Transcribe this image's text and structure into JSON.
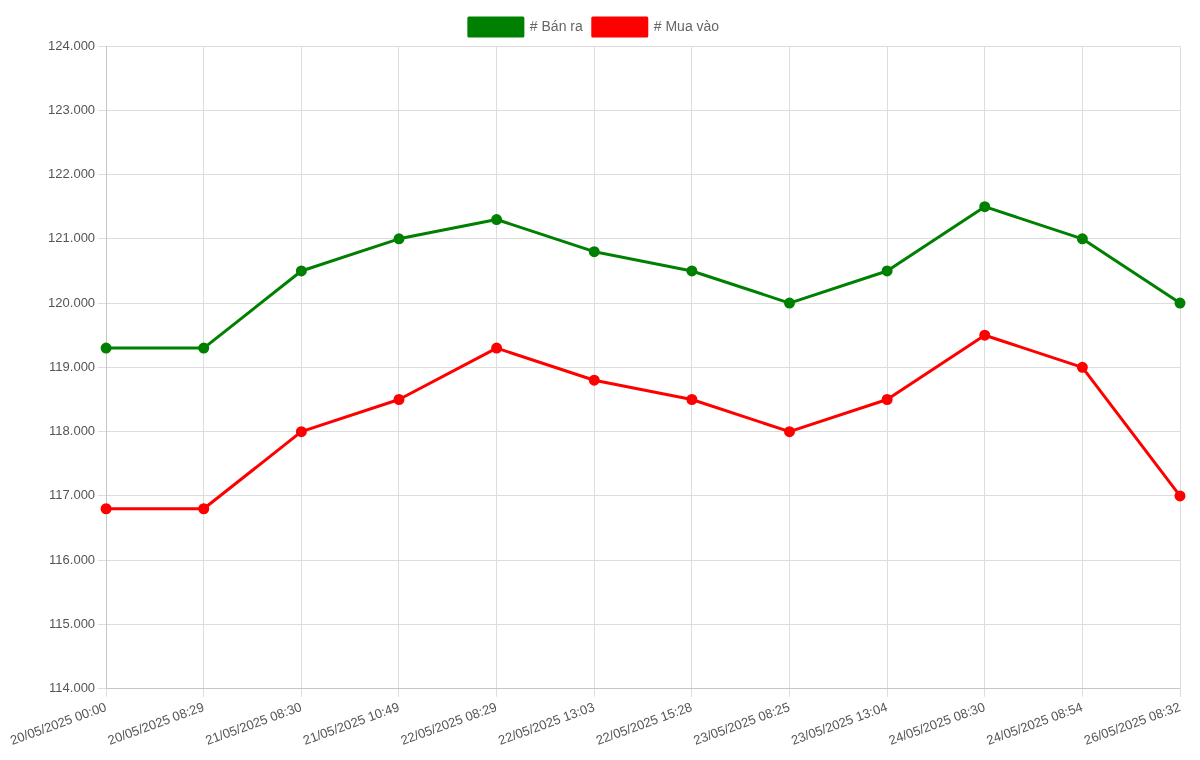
{
  "chart_data": {
    "type": "line",
    "categories": [
      "20/05/2025 00:00",
      "20/05/2025 08:29",
      "21/05/2025 08:30",
      "21/05/2025 10:49",
      "22/05/2025 08:29",
      "22/05/2025 13:03",
      "22/05/2025 15:28",
      "23/05/2025 08:25",
      "23/05/2025 13:04",
      "24/05/2025 08:30",
      "24/05/2025 08:54",
      "26/05/2025 08:32"
    ],
    "series": [
      {
        "name": "# Bán ra",
        "color": "#008000",
        "values": [
          119300,
          119300,
          120500,
          121000,
          121300,
          120800,
          120500,
          120000,
          120500,
          121500,
          121000,
          120000
        ]
      },
      {
        "name": "# Mua vào",
        "color": "#ff0000",
        "values": [
          116800,
          116800,
          118000,
          118500,
          119300,
          118800,
          118500,
          118000,
          118500,
          119500,
          119000,
          117000
        ]
      }
    ],
    "ylim": [
      114000,
      124000
    ],
    "yticks": [
      {
        "value": 114000,
        "label": "114.000"
      },
      {
        "value": 115000,
        "label": "115.000"
      },
      {
        "value": 116000,
        "label": "116.000"
      },
      {
        "value": 117000,
        "label": "117.000"
      },
      {
        "value": 118000,
        "label": "118.000"
      },
      {
        "value": 119000,
        "label": "119.000"
      },
      {
        "value": 120000,
        "label": "120.000"
      },
      {
        "value": 121000,
        "label": "121.000"
      },
      {
        "value": 122000,
        "label": "122.000"
      },
      {
        "value": 123000,
        "label": "123.000"
      },
      {
        "value": 124000,
        "label": "124.000"
      }
    ],
    "grid": true,
    "legend": "top",
    "marker": "circle",
    "line_style": "solid"
  }
}
